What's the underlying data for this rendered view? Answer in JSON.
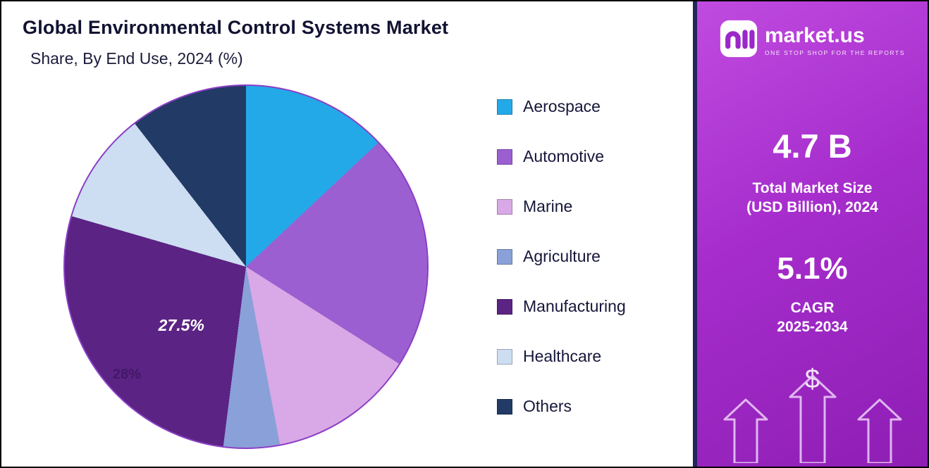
{
  "header": {
    "title": "Global Environmental Control Systems Market",
    "subtitle": "Share, By End Use, 2024 (%)"
  },
  "chart_data": {
    "type": "pie",
    "title": "Global Environmental Control Systems Market Share, By End Use, 2024 (%)",
    "unit": "%",
    "direction": "clockwise",
    "start_angle_deg": 0,
    "legend_position": "right",
    "segments": [
      {
        "label": "Aerospace",
        "value": 13.0,
        "color": "#24a9e8"
      },
      {
        "label": "Automotive",
        "value": 21.0,
        "color": "#9c5fd1"
      },
      {
        "label": "Marine",
        "value": 13.0,
        "color": "#d9a8e6"
      },
      {
        "label": "Agriculture",
        "value": 5.0,
        "color": "#8aa0d8"
      },
      {
        "label": "Manufacturing",
        "value": 27.5,
        "color": "#5b2383"
      },
      {
        "label": "Healthcare",
        "value": 10.0,
        "color": "#cdddf2"
      },
      {
        "label": "Others",
        "value": 10.5,
        "color": "#223a66"
      }
    ],
    "data_label_main": "27.5%",
    "data_label_faint": "28%"
  },
  "sidebar": {
    "logo": {
      "brand": "market.us",
      "tagline": "ONE STOP SHOP FOR THE REPORTS"
    },
    "stats": [
      {
        "value": "4.7 B",
        "label_line1": "Total Market Size",
        "label_line2": "(USD Billion), 2024"
      },
      {
        "value": "5.1%",
        "label_line1": "CAGR",
        "label_line2": "2025-2034"
      }
    ],
    "dollar_symbol": "$",
    "colors": {
      "gradient_top": "#c04be0",
      "gradient_bottom": "#8e1eb4",
      "border_navy": "#23255c",
      "arrow_outline": "#e9c6f7"
    }
  }
}
